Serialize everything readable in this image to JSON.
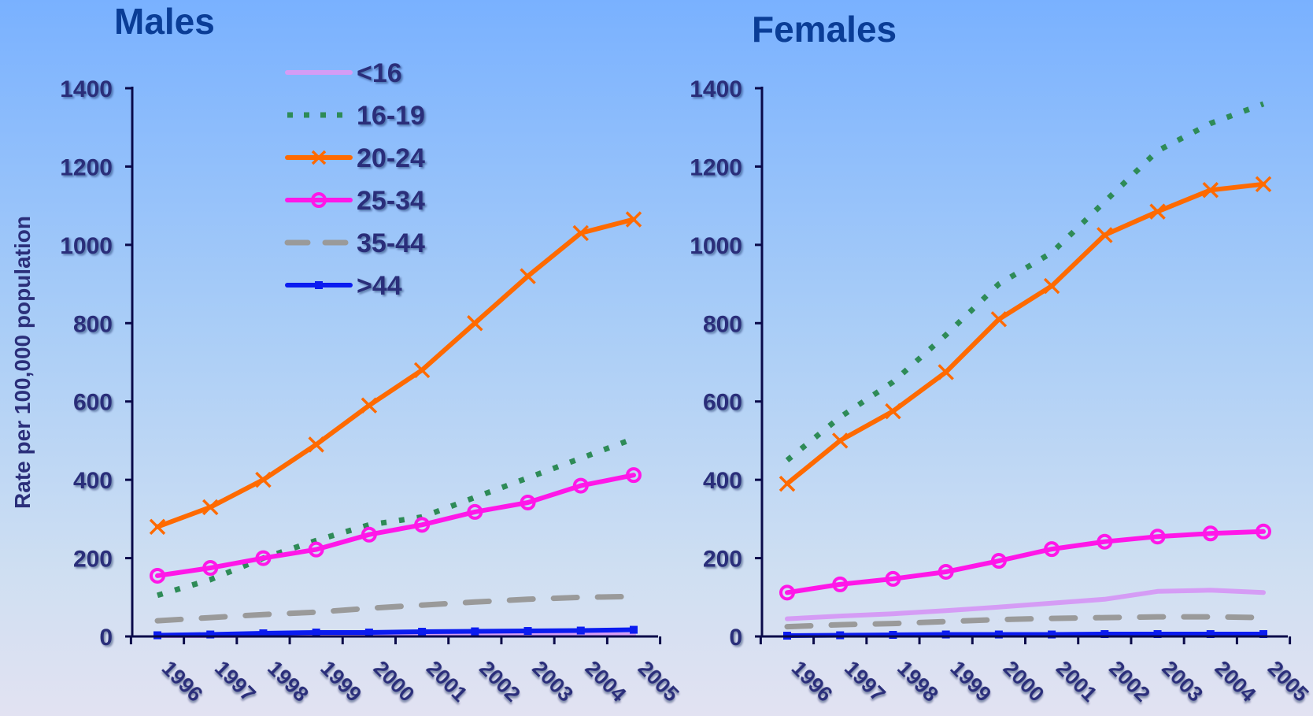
{
  "chart_data": [
    {
      "type": "line",
      "title": "Males",
      "ylabel": "Rate per 100,000 population",
      "ylim": [
        0,
        1400
      ],
      "yticks": [
        0,
        200,
        400,
        600,
        800,
        1000,
        1200,
        1400
      ],
      "categories": [
        "1996",
        "1997",
        "1998",
        "1999",
        "2000",
        "2001",
        "2002",
        "2003",
        "2004",
        "2005"
      ],
      "series": [
        {
          "name": "<16",
          "color": "#d59cf5",
          "style": "solid",
          "marker": "none",
          "values": [
            2,
            2,
            3,
            3,
            3,
            3,
            4,
            4,
            4,
            4
          ]
        },
        {
          "name": "16-19",
          "color": "#2e8b57",
          "style": "dotted",
          "marker": "none",
          "values": [
            105,
            145,
            200,
            245,
            285,
            305,
            355,
            405,
            455,
            505
          ]
        },
        {
          "name": "20-24",
          "color": "#ff6a00",
          "style": "solid",
          "marker": "x",
          "values": [
            280,
            330,
            400,
            490,
            590,
            680,
            800,
            920,
            1030,
            1065
          ]
        },
        {
          "name": "25-34",
          "color": "#ff17e8",
          "style": "solid",
          "marker": "circle",
          "values": [
            155,
            175,
            200,
            222,
            260,
            285,
            318,
            342,
            385,
            412
          ]
        },
        {
          "name": "35-44",
          "color": "#9a9a9a",
          "style": "dashed",
          "marker": "none",
          "values": [
            40,
            48,
            56,
            62,
            72,
            80,
            88,
            95,
            100,
            102
          ]
        },
        {
          "name": ">44",
          "color": "#0b1cf0",
          "style": "solid",
          "marker": "square",
          "values": [
            3,
            5,
            8,
            10,
            10,
            12,
            13,
            14,
            15,
            17
          ]
        }
      ]
    },
    {
      "type": "line",
      "title": "Females",
      "ylim": [
        0,
        1400
      ],
      "yticks": [
        0,
        200,
        400,
        600,
        800,
        1000,
        1200,
        1400
      ],
      "categories": [
        "1996",
        "1997",
        "1998",
        "1999",
        "2000",
        "2001",
        "2002",
        "2003",
        "2004",
        "2005"
      ],
      "series": [
        {
          "name": "<16",
          "color": "#d59cf5",
          "style": "solid",
          "marker": "none",
          "values": [
            45,
            52,
            58,
            66,
            75,
            85,
            95,
            115,
            118,
            112
          ]
        },
        {
          "name": "16-19",
          "color": "#2e8b57",
          "style": "dotted",
          "marker": "none",
          "values": [
            450,
            560,
            650,
            770,
            900,
            980,
            1110,
            1240,
            1310,
            1360
          ]
        },
        {
          "name": "20-24",
          "color": "#ff6a00",
          "style": "solid",
          "marker": "x",
          "values": [
            390,
            500,
            575,
            675,
            810,
            895,
            1025,
            1085,
            1140,
            1155
          ]
        },
        {
          "name": "25-34",
          "color": "#ff17e8",
          "style": "solid",
          "marker": "circle",
          "values": [
            112,
            133,
            147,
            165,
            193,
            223,
            242,
            255,
            263,
            268
          ]
        },
        {
          "name": "35-44",
          "color": "#9a9a9a",
          "style": "dashed",
          "marker": "none",
          "values": [
            25,
            30,
            33,
            38,
            43,
            46,
            48,
            50,
            50,
            48
          ]
        },
        {
          "name": ">44",
          "color": "#0b1cf0",
          "style": "solid",
          "marker": "square",
          "values": [
            2,
            3,
            4,
            5,
            5,
            5,
            6,
            6,
            6,
            6
          ]
        }
      ]
    }
  ]
}
